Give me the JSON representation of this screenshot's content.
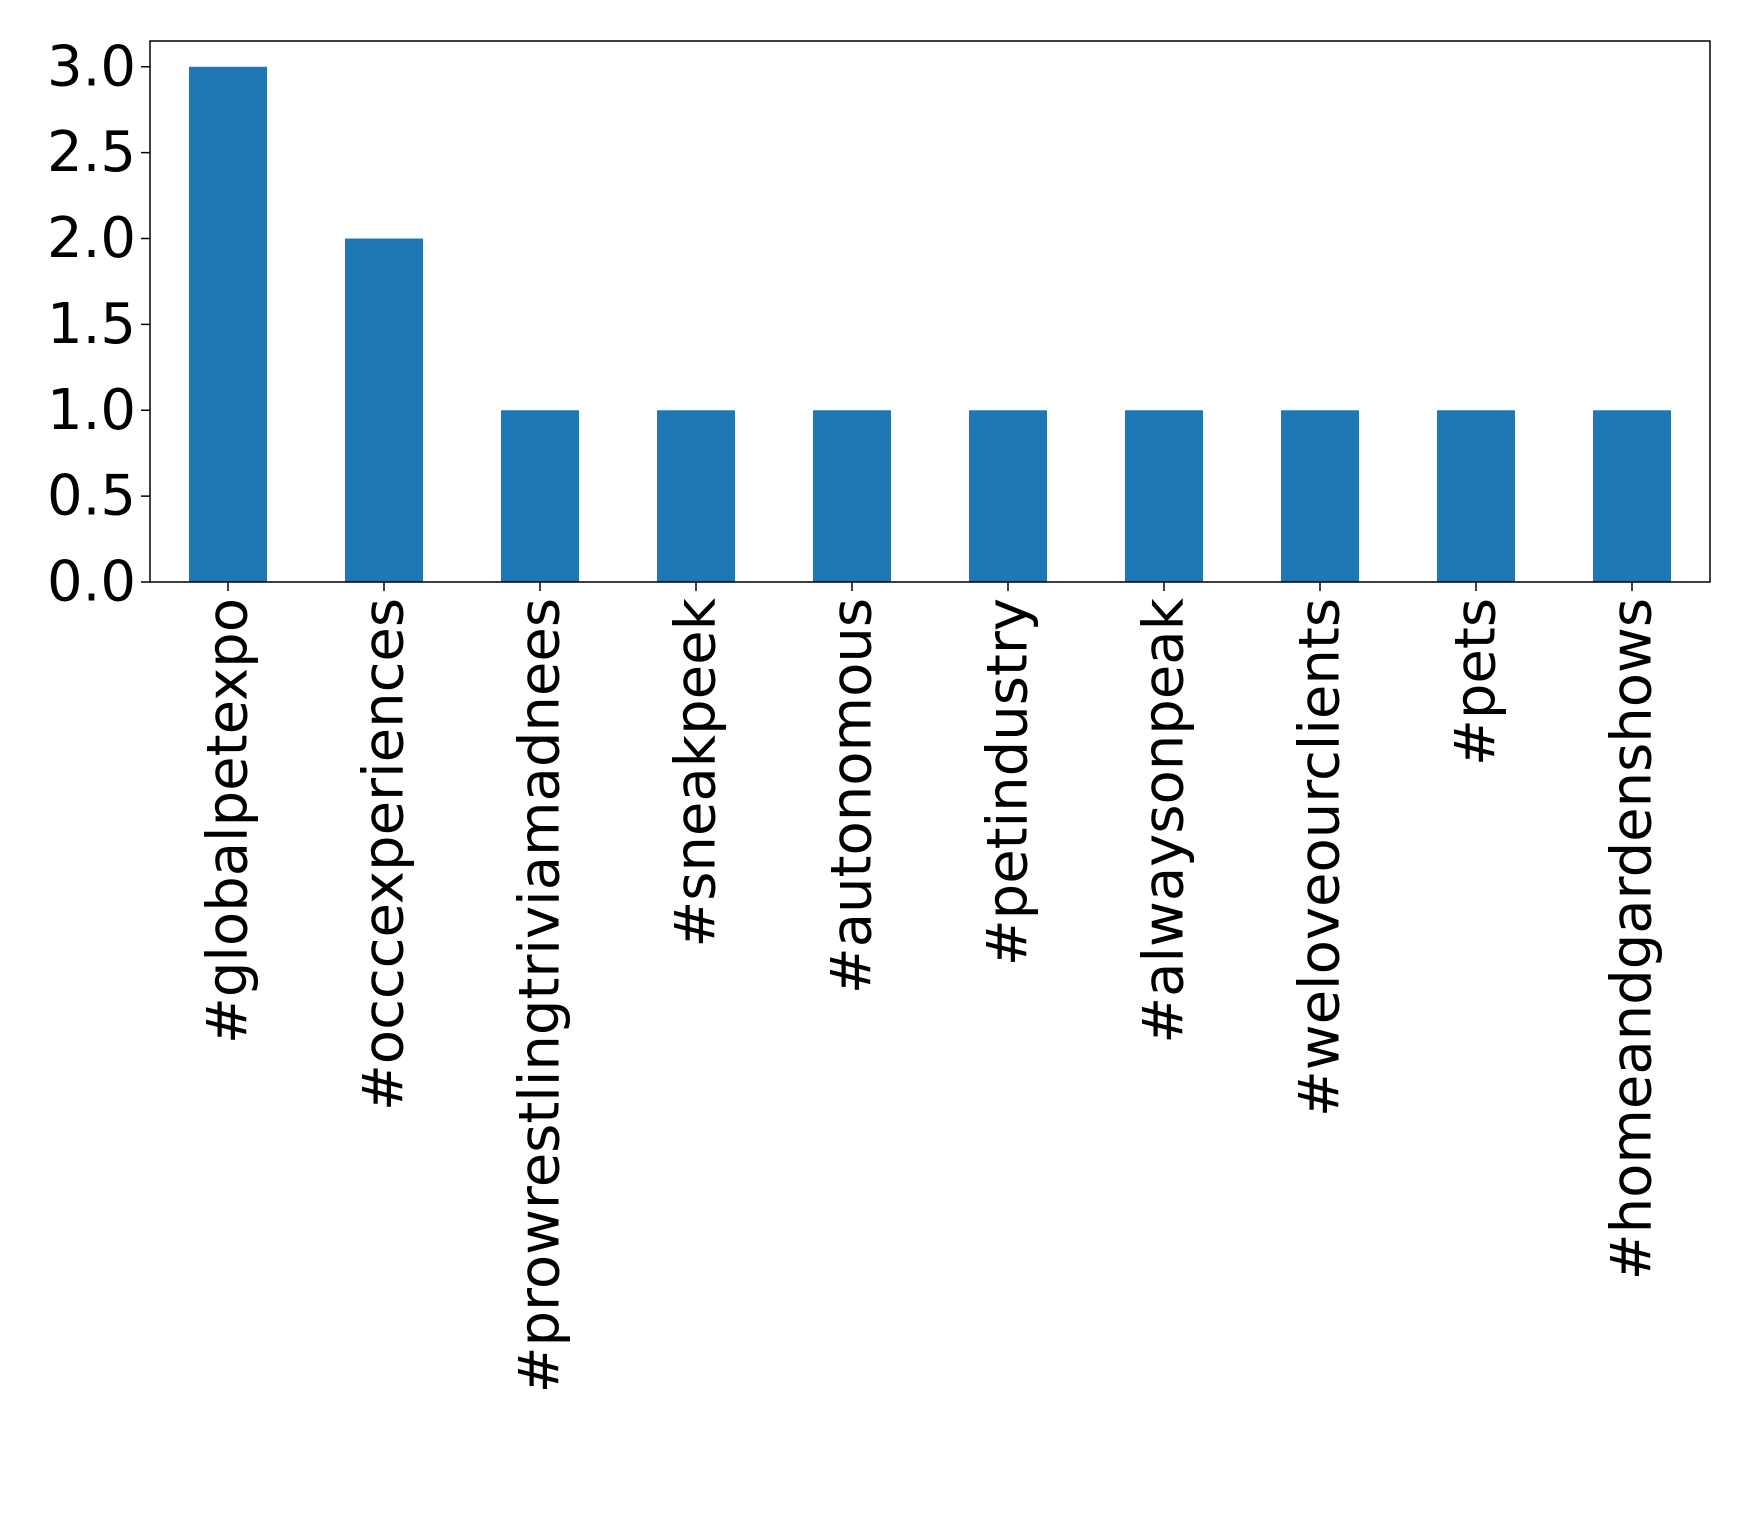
{
  "chart_data": {
    "type": "bar",
    "title": "",
    "xlabel": "",
    "ylabel": "",
    "categories": [
      "#globalpetexpo",
      "#occcexperiences",
      "#prowrestlingtriviamadnees",
      "#sneakpeek",
      "#autonomous",
      "#petindustry",
      "#alwaysonpeak",
      "#weloveourclients",
      "#pets",
      "#homeandgardenshows"
    ],
    "values": [
      3,
      2,
      1,
      1,
      1,
      1,
      1,
      1,
      1,
      1
    ],
    "ylim": [
      0,
      3.15
    ],
    "yticks": [
      0.0,
      0.5,
      1.0,
      1.5,
      2.0,
      2.5,
      3.0
    ],
    "ytick_labels": [
      "0.0",
      "0.5",
      "1.0",
      "1.5",
      "2.0",
      "2.5",
      "3.0"
    ],
    "bar_color": "#1f77b4",
    "grid": false,
    "legend": "none"
  }
}
